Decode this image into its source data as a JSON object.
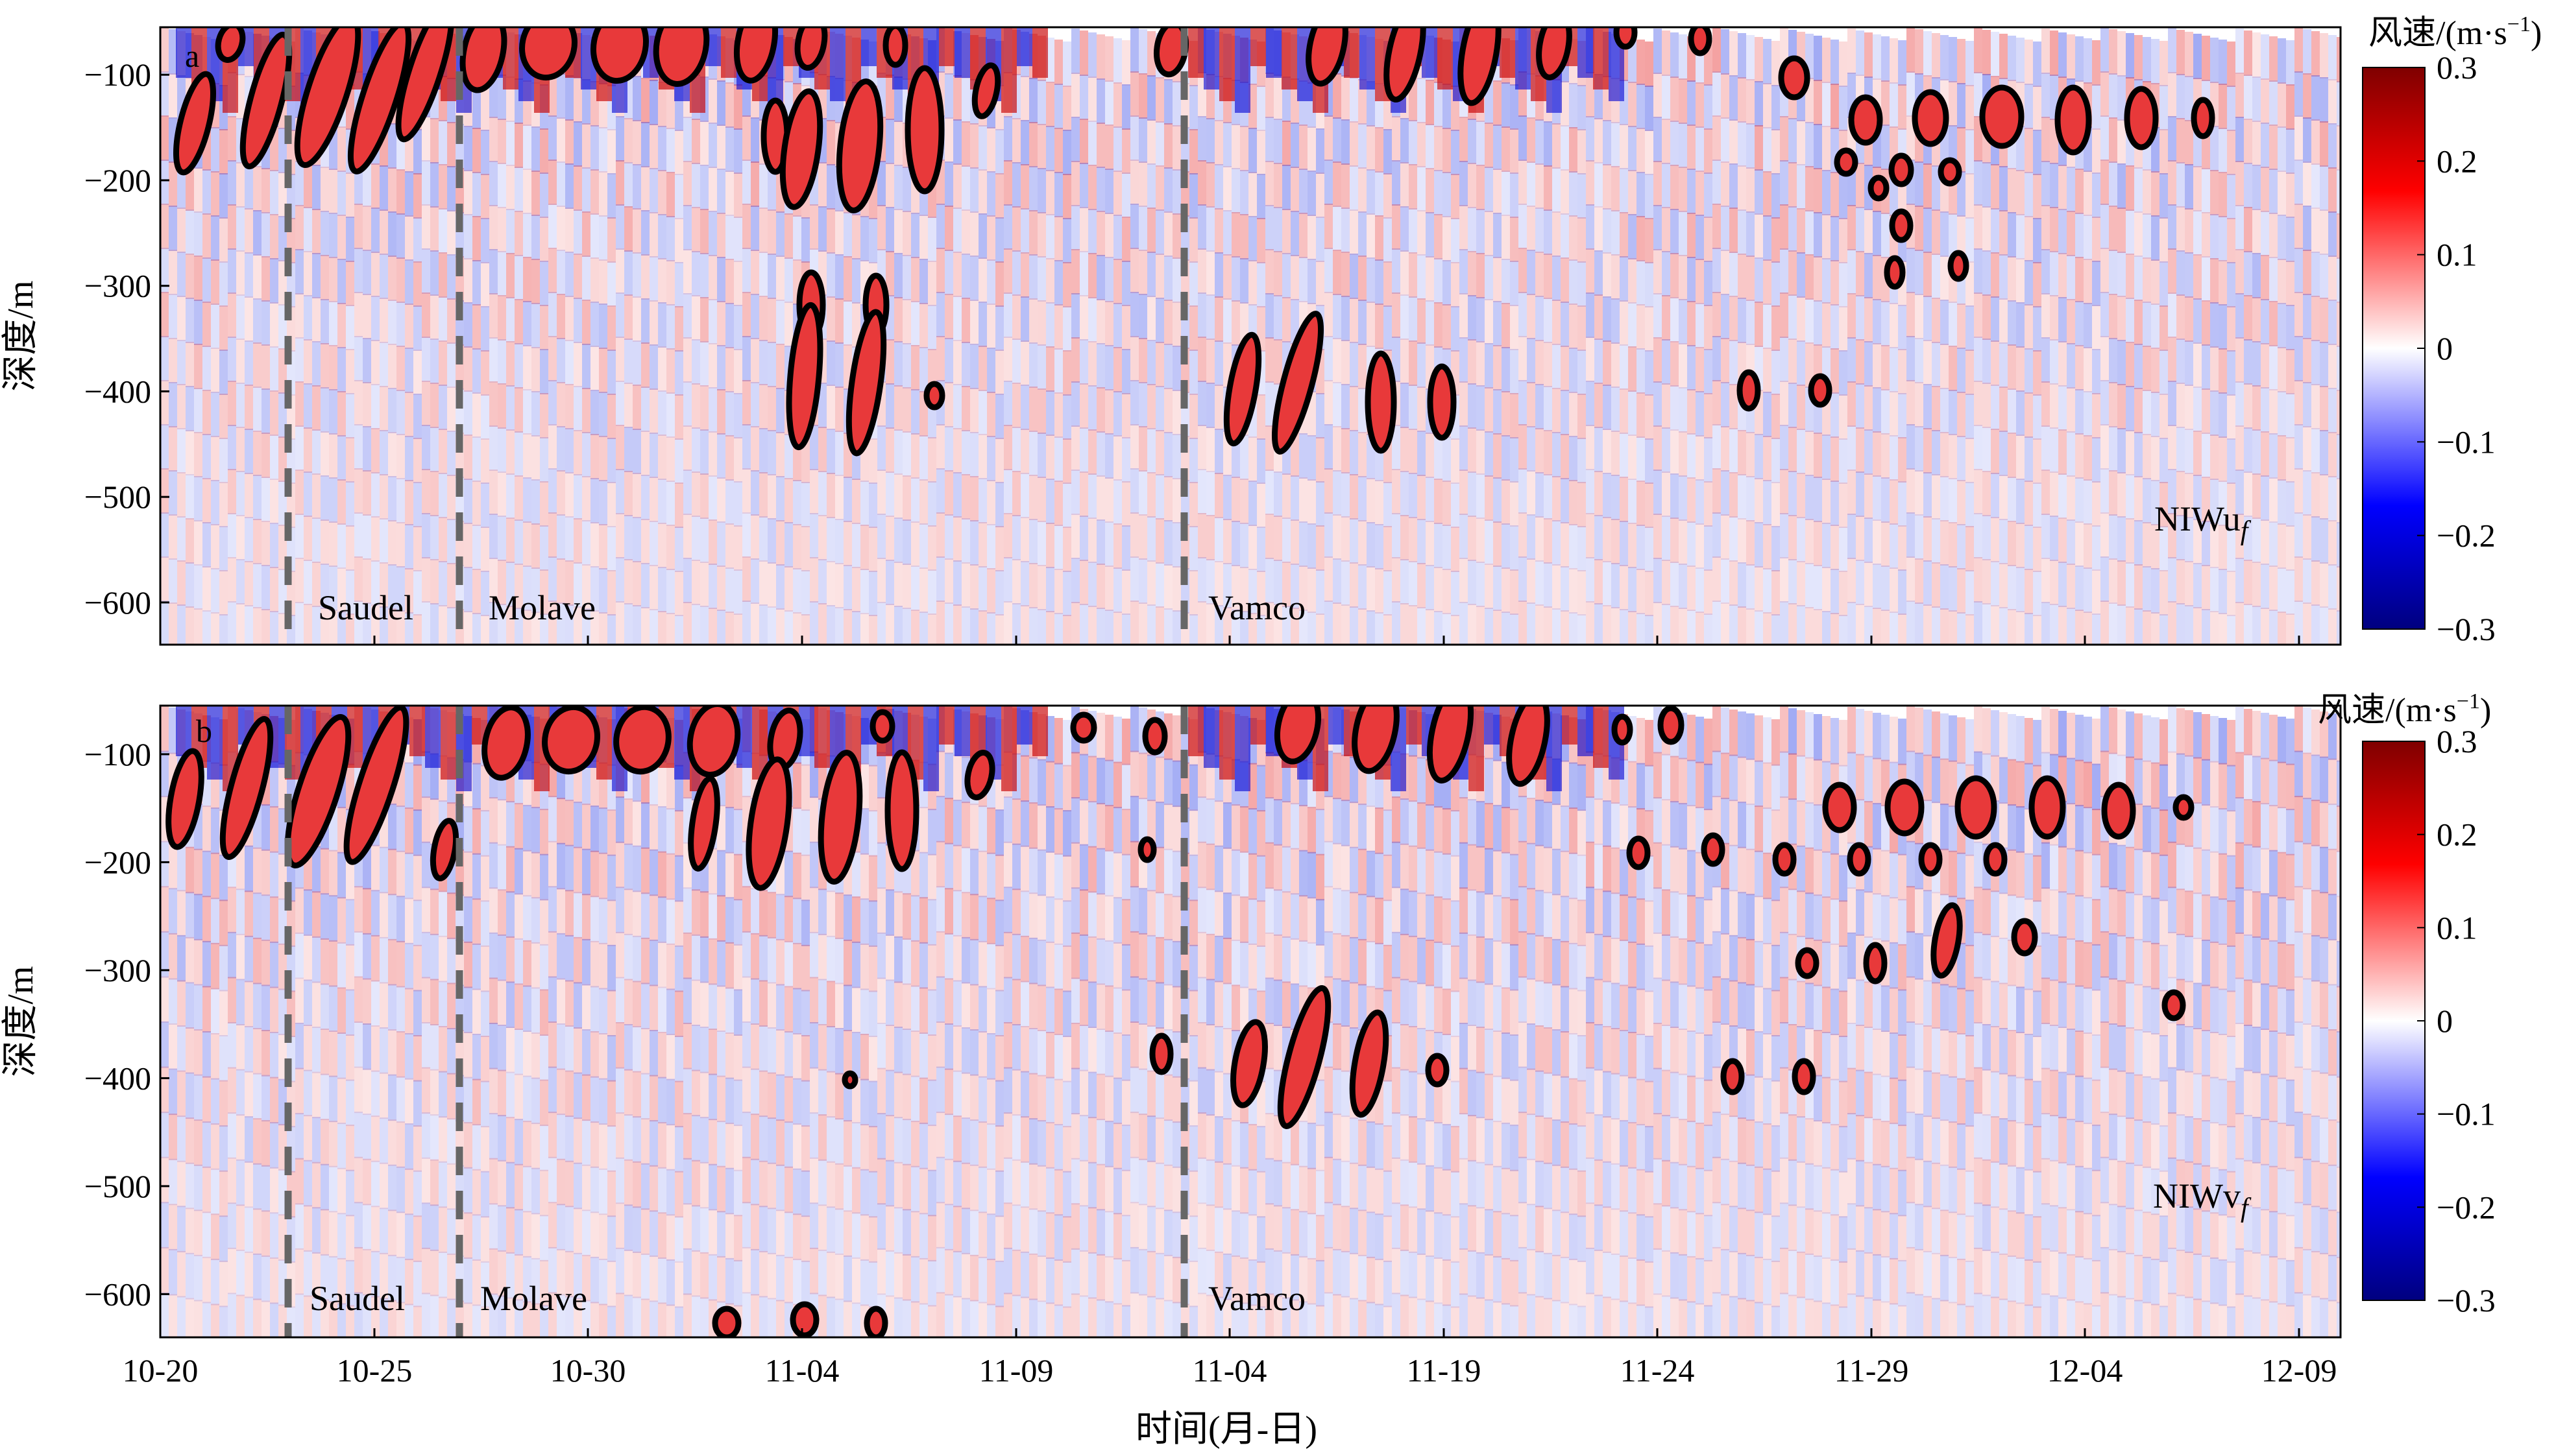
{
  "chart_data": [
    {
      "type": "heatmap",
      "panel_letter": "a",
      "variable_label": "NIWu",
      "variable_subscript": "f",
      "ylabel": "深度/m",
      "xlabel": "",
      "yticks": [
        -100,
        -200,
        -300,
        -400,
        -500,
        -600
      ],
      "ylim": [
        -640,
        -55
      ],
      "xticks": [
        "10-20",
        "10-25",
        "10-30",
        "11-04",
        "11-09",
        "11-04",
        "11-19",
        "11-24",
        "11-29",
        "12-04",
        "12-09"
      ],
      "typhoons": [
        {
          "name": "Saudel"
        },
        {
          "name": "Molave"
        },
        {
          "name": "Vamco"
        }
      ],
      "colorbar": {
        "title": "风速/(m·s",
        "title_sup": "−1",
        "title_end": ")",
        "ticks": [
          "0.3",
          "0.2",
          "0.1",
          "0",
          "−0.1",
          "−0.2",
          "−0.3"
        ],
        "range": [
          -0.3,
          0.3
        ],
        "colormap": [
          "#00007f",
          "#0000ff",
          "#ffffff",
          "#ff0000",
          "#7f0000"
        ]
      },
      "contour_level": 0.15
    },
    {
      "type": "heatmap",
      "panel_letter": "b",
      "variable_label": "NIWv",
      "variable_subscript": "f",
      "ylabel": "深度/m",
      "xlabel": "时间(月-日)",
      "yticks": [
        -100,
        -200,
        -300,
        -400,
        -500,
        -600
      ],
      "ylim": [
        -640,
        -55
      ],
      "xticks": [
        "10-20",
        "10-25",
        "10-30",
        "11-04",
        "11-09",
        "11-04",
        "11-19",
        "11-24",
        "11-29",
        "12-04",
        "12-09"
      ],
      "typhoons": [
        {
          "name": "Saudel"
        },
        {
          "name": "Molave"
        },
        {
          "name": "Vamco"
        }
      ],
      "colorbar": {
        "title": "风速/(m·s",
        "title_sup": "−1",
        "title_end": ")",
        "ticks": [
          "0.3",
          "0.2",
          "0.1",
          "0",
          "−0.1",
          "−0.2",
          "−0.3"
        ],
        "range": [
          -0.3,
          0.3
        ],
        "colormap": [
          "#00007f",
          "#0000ff",
          "#ffffff",
          "#ff0000",
          "#7f0000"
        ]
      },
      "contour_level": 0.15
    }
  ]
}
